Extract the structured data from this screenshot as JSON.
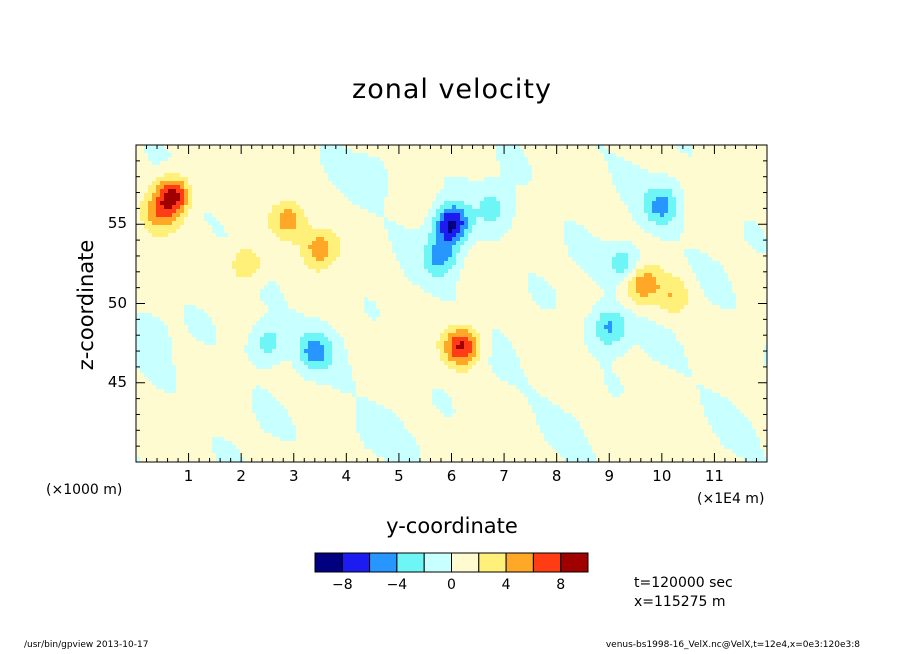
{
  "chart_data": {
    "type": "heatmap",
    "title": "zonal velocity",
    "xlabel": "y-coordinate",
    "ylabel": "z-coordinate",
    "x_unit": "(×1E4 m)",
    "y_unit": "(×1000 m)",
    "xlim": [
      0,
      12
    ],
    "ylim": [
      40,
      60
    ],
    "x_ticks": [
      "1",
      "2",
      "3",
      "4",
      "5",
      "6",
      "7",
      "8",
      "9",
      "10",
      "11"
    ],
    "y_ticks": [
      "45",
      "50",
      "55"
    ],
    "colorbar": {
      "levels": [
        -10,
        -8,
        -6,
        -4,
        -2,
        0,
        2,
        4,
        6,
        8,
        10
      ],
      "labels": [
        "−8",
        "−4",
        "0",
        "4",
        "8"
      ],
      "colors": [
        "#000080",
        "#1c1cf0",
        "#2896ff",
        "#6ef6f6",
        "#c8ffff",
        "#fffbd0",
        "#fff07a",
        "#ffa828",
        "#ff3c14",
        "#a00000"
      ]
    },
    "features": [
      {
        "y": 0.7,
        "z": 56.8,
        "u": 9
      },
      {
        "y": 0.4,
        "z": 55.5,
        "u": 4
      },
      {
        "y": 2.9,
        "z": 55.3,
        "u": 5
      },
      {
        "y": 3.5,
        "z": 53.5,
        "u": 5
      },
      {
        "y": 2.1,
        "z": 52.5,
        "u": 4
      },
      {
        "y": 6.2,
        "z": 47.3,
        "u": 8
      },
      {
        "y": 9.6,
        "z": 51.2,
        "u": 5
      },
      {
        "y": 10.2,
        "z": 50.5,
        "u": 3
      },
      {
        "y": 6.0,
        "z": 55.0,
        "u": -9
      },
      {
        "y": 5.8,
        "z": 53.0,
        "u": -5
      },
      {
        "y": 6.8,
        "z": 56.0,
        "u": -3
      },
      {
        "y": 10.0,
        "z": 56.2,
        "u": -5
      },
      {
        "y": 9.3,
        "z": 52.5,
        "u": -4
      },
      {
        "y": 9.0,
        "z": 48.5,
        "u": -5
      },
      {
        "y": 3.4,
        "z": 47.0,
        "u": -5
      },
      {
        "y": 2.5,
        "z": 47.5,
        "u": -4
      },
      {
        "y": 0.2,
        "z": 48.0,
        "u": -2
      },
      {
        "y": 4.5,
        "z": 58.0,
        "u": -2
      },
      {
        "y": 4.5,
        "z": 42.0,
        "u": -1.5
      }
    ]
  },
  "info": {
    "time": "t=120000 sec",
    "x_pos": "x=115275 m"
  },
  "footer": {
    "left": "/usr/bin/gpview   2013-10-17",
    "right": "venus-bs1998-16_VelX.nc@VelX,t=12e4,x=0e3:120e3:8"
  }
}
